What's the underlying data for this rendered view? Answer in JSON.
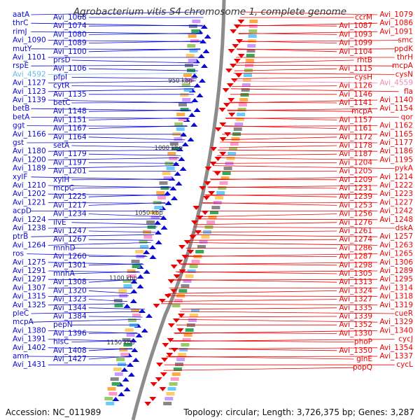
{
  "title": "Agrobacterium vitis S4 chromosome 1, complete genome",
  "footer": {
    "accession": "Accession: NC_011989",
    "summary": "Topology: circular; Length: 3,726,375 bp; Genes: 3,287"
  },
  "colors": {
    "forward": "#0a0ad6",
    "reverse": "#ee0000",
    "backbone": "#8c8c8c",
    "tick": "#2a8a2a",
    "ruler_label": "#333333",
    "highlight_blue": "#66b8e8",
    "highlight_pink": "#f08ab0"
  },
  "ruler_labels": [
    "950 kbp",
    "1000 kbp",
    "1050 kbp",
    "1100 kbp",
    "1150 kbp"
  ],
  "left_labels": [
    "aatA",
    "Avi_1068",
    "thrC",
    "Avi_1074",
    "rimJ",
    "Avi_1080",
    "Avi_1090",
    "Avi_1089",
    "mutY",
    "Avi_1100",
    "Avi_1101",
    "prsD",
    "rspE",
    "Avi_1106",
    "Avi_4592",
    "pfpI",
    "Avi_1127",
    "cytR",
    "Avi_1123",
    "Avi_1135",
    "Avi_1139",
    "betC",
    "betB",
    "Avi_1148",
    "betA",
    "Avi_1151",
    "ggt",
    "Avi_1167",
    "Avi_1166",
    "Avi_1164",
    "gst",
    "setA",
    "Avi_1180",
    "Avi_1179",
    "Avi_1200",
    "Avi_1197",
    "Avi_1189",
    "Avi_1201",
    "xylF",
    "xylH",
    "Avi_1210",
    "mcpC",
    "Avi_1202",
    "Avi_1225",
    "Avi_1221",
    "Avi_1217",
    "acpD",
    "Avi_1234",
    "Avi_1224",
    "ilvE",
    "Avi_1238",
    "Avi_1247",
    "ptrB",
    "Avi_1267",
    "Avi_1264",
    "mnhD",
    "ros",
    "Avi_1260",
    "Avi_1275",
    "Avi_1301",
    "Avi_1291",
    "mnhA",
    "Avi_1297",
    "Avi_1308",
    "Avi_1307",
    "Avi_1320",
    "Avi_1315",
    "Avi_1323",
    "Avi_1325",
    "Avi_1344",
    "pleC",
    "Avi_1384",
    "mcpA",
    "pepN",
    "Avi_1380",
    "Avi_1396",
    "Avi_1391",
    "hisC",
    "Avi_1402",
    "Avi_1408",
    "amn",
    "Avi_1427",
    "Avi_1431"
  ],
  "right_labels": [
    "Avi_1079",
    "ccrM",
    "Avi_1086",
    "Avi_1087",
    "Avi_1091",
    "Avi_1093",
    "smc",
    "Avi_1099",
    "ppdK",
    "Avi_1104",
    "thrH",
    "rhtB",
    "mcpA",
    "Avi_1115",
    "cysN",
    "cysH",
    "Avi_4559",
    "Avi_1126",
    "fla",
    "Avi_1146",
    "Avi_1140",
    "Avi_1141",
    "Avi_1154",
    "mcpA",
    "qor",
    "Avi_1157",
    "Avi_1162",
    "Avi_1161",
    "Avi_1165",
    "Avi_1172",
    "Avi_1177",
    "Avi_1178",
    "Avi_1186",
    "Avi_1187",
    "Avi_1195",
    "Avi_1204",
    "pykA",
    "Avi_1205",
    "Avi_1214",
    "Avi_1209",
    "Avi_1222",
    "Avi_1231",
    "Avi_1223",
    "Avi_1239",
    "Avi_1227",
    "Avi_1253",
    "Avi_1242",
    "Avi_1256",
    "Avi_1248",
    "Avi_1276",
    "dskA",
    "Avi_1261",
    "Avi_1257",
    "Avi_1274",
    "Avi_1263",
    "Avi_1286",
    "Avi_1265",
    "Avi_1287",
    "Avi_1306",
    "Avi_1298",
    "Avi_1289",
    "Avi_1305",
    "Avi_1295",
    "Avi_1313",
    "Avi_1314",
    "Avi_1324",
    "Avi_1318",
    "Avi_1327",
    "Avi_1319",
    "Avi_1335",
    "cueR",
    "Avi_1339",
    "Avi_1329",
    "Avi_1352",
    "Avi_1340",
    "Avi_1330",
    "cycJ",
    "phoP",
    "Avi_1354",
    "Avi_1350",
    "Avi_1337",
    "glnE",
    "cycL",
    "popQ"
  ]
}
